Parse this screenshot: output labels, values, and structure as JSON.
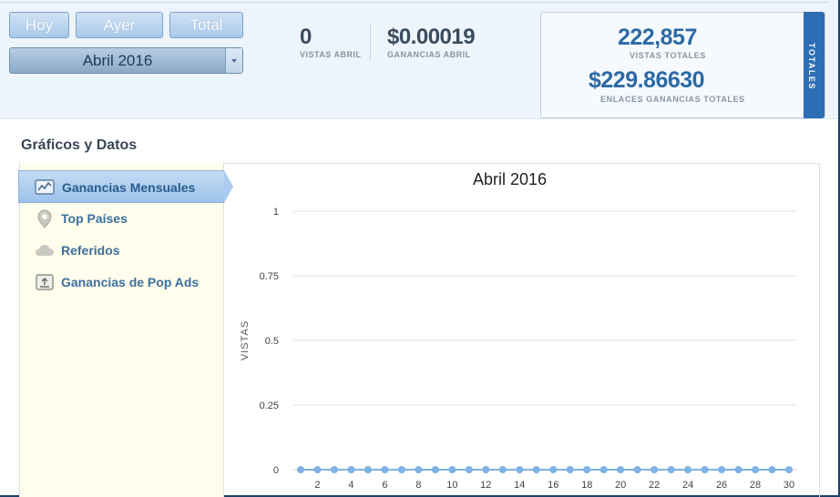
{
  "buttons": {
    "hoy": "Hoy",
    "ayer": "Ayer",
    "total": "Total"
  },
  "month_select": {
    "selected": "Abril 2016"
  },
  "stats": {
    "views_value": "0",
    "views_label": "VISTAS ABRIL",
    "earnings_value": "$0.00019",
    "earnings_label": "GANANCIAS ABRIL"
  },
  "totals": {
    "tab_label": "TOTALES",
    "views_value": "222,857",
    "views_label": "VISTAS TOTALES",
    "earnings_value": "$229.86630",
    "earnings_label": "ENLACES GANANCIAS TOTALES"
  },
  "section_title": "Gráficos y Datos",
  "sidebar": {
    "items": [
      {
        "label": "Ganancias Mensuales",
        "icon": "line-chart-icon",
        "active": true
      },
      {
        "label": "Top Países",
        "icon": "map-pin-icon",
        "active": false
      },
      {
        "label": "Referidos",
        "icon": "cloud-icon",
        "active": false
      },
      {
        "label": "Ganancias de Pop Ads",
        "icon": "monitor-icon",
        "active": false
      }
    ]
  },
  "colors": {
    "accent": "#2c6aa6",
    "series": "#7fb2e5",
    "sidebar_bg": "#fffdec"
  },
  "chart_data": {
    "type": "line",
    "title": "Abril 2016",
    "ylabel": "VISTAS",
    "xlabel": "",
    "ylim": [
      0,
      1
    ],
    "yticks": [
      "0",
      "0.25",
      "0.5",
      "0.75",
      "1"
    ],
    "xtick_labels": [
      "2",
      "4",
      "6",
      "8",
      "10",
      "12",
      "14",
      "16",
      "18",
      "20",
      "22",
      "24",
      "26",
      "28",
      "30"
    ],
    "grid": true,
    "series": [
      {
        "x": [
          1,
          2,
          3,
          4,
          5,
          6,
          7,
          8,
          9,
          10,
          11,
          12,
          13,
          14,
          15,
          16,
          17,
          18,
          19,
          20,
          21,
          22,
          23,
          24,
          25,
          26,
          27,
          28,
          29,
          30
        ],
        "values": [
          0,
          0,
          0,
          0,
          0,
          0,
          0,
          0,
          0,
          0,
          0,
          0,
          0,
          0,
          0,
          0,
          0,
          0,
          0,
          0,
          0,
          0,
          0,
          0,
          0,
          0,
          0,
          0,
          0,
          0
        ]
      }
    ]
  }
}
